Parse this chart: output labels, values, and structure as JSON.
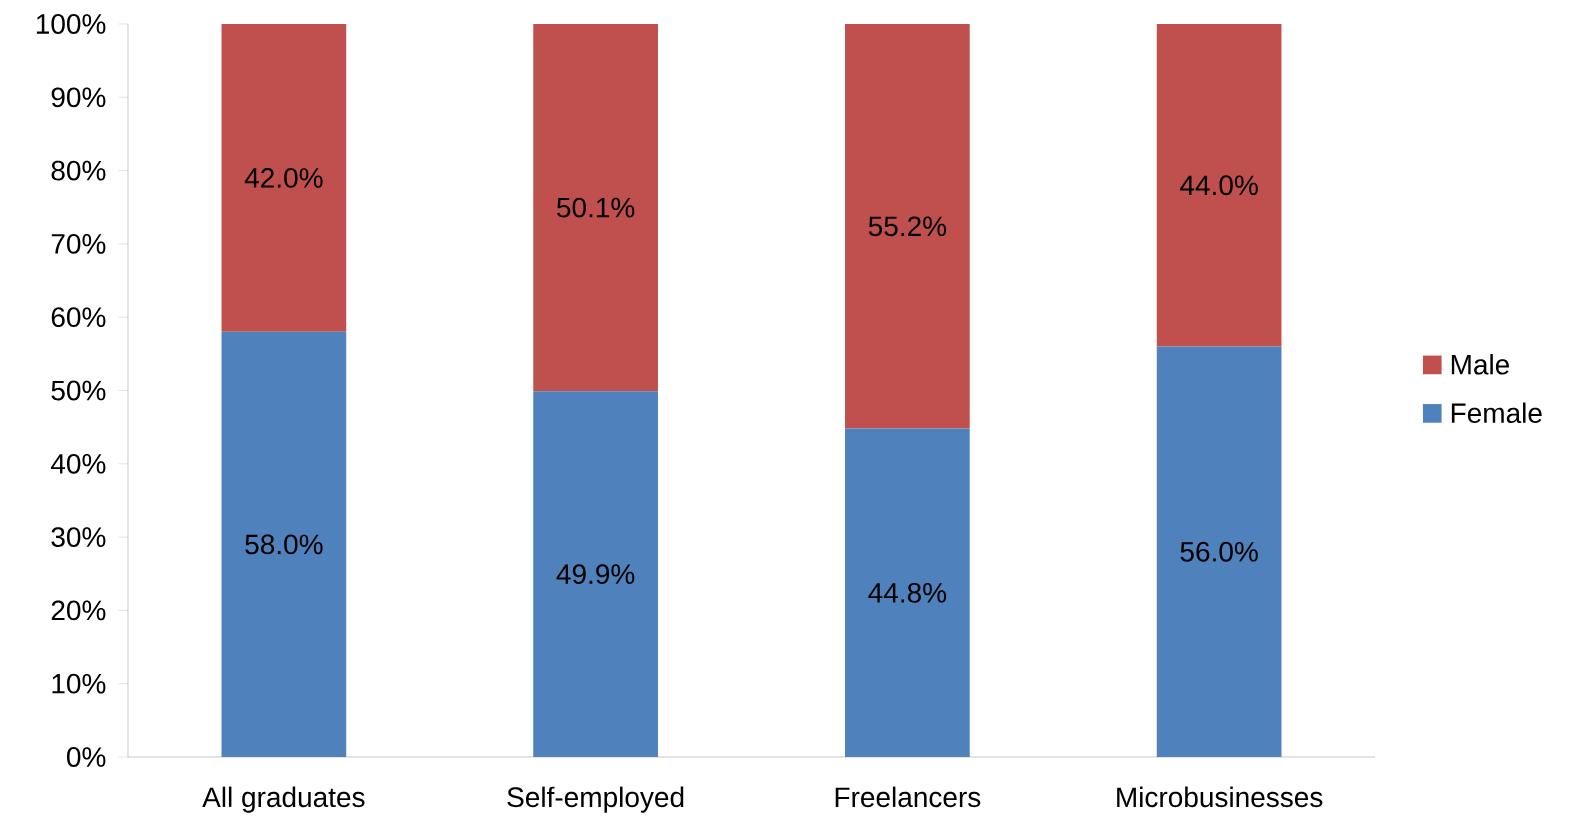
{
  "chart_data": {
    "type": "bar",
    "stacked": true,
    "legend": "right",
    "grid": false,
    "categories": [
      "All graduates",
      "Self-employed",
      "Freelancers",
      "Microbusinesses"
    ],
    "series": [
      {
        "name": "Female",
        "color": "#4f81bd",
        "values": [
          58.0,
          49.9,
          44.8,
          56.0
        ],
        "value_labels": [
          "58.0%",
          "49.9%",
          "44.8%",
          "56.0%"
        ]
      },
      {
        "name": "Male",
        "color": "#c0504d",
        "values": [
          42.0,
          50.1,
          55.2,
          44.0
        ],
        "value_labels": [
          "42.0%",
          "50.1%",
          "55.2%",
          "44.0%"
        ]
      }
    ],
    "ylim": [
      0,
      100
    ],
    "yticks": [
      {
        "value": 0,
        "label": "0%"
      },
      {
        "value": 10,
        "label": "10%"
      },
      {
        "value": 20,
        "label": "20%"
      },
      {
        "value": 30,
        "label": "30%"
      },
      {
        "value": 40,
        "label": "40%"
      },
      {
        "value": 50,
        "label": "50%"
      },
      {
        "value": 60,
        "label": "60%"
      },
      {
        "value": 70,
        "label": "70%"
      },
      {
        "value": 80,
        "label": "80%"
      },
      {
        "value": 90,
        "label": "90%"
      },
      {
        "value": 100,
        "label": "100%"
      }
    ]
  }
}
